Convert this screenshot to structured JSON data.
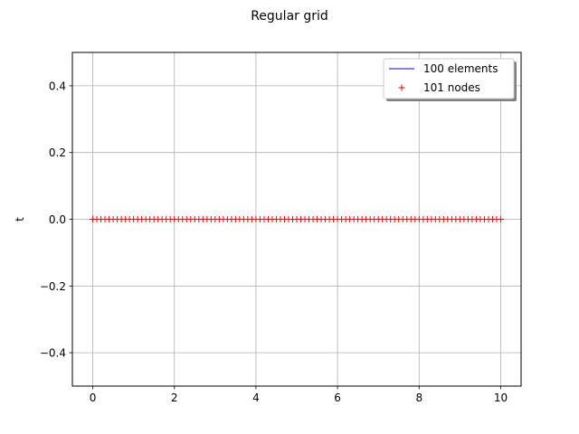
{
  "chart_data": {
    "type": "line",
    "title": "Regular grid",
    "xlabel": "",
    "ylabel": "t",
    "xlim": [
      -0.5,
      10.5
    ],
    "ylim": [
      -0.5,
      0.5
    ],
    "xticks": [
      0,
      2,
      4,
      6,
      8,
      10
    ],
    "yticks": [
      -0.4,
      -0.2,
      0.0,
      0.2,
      0.4
    ],
    "xtick_labels": [
      "0",
      "2",
      "4",
      "6",
      "8",
      "10"
    ],
    "ytick_labels": [
      "−0.4",
      "−0.2",
      "0.0",
      "0.2",
      "0.4"
    ],
    "grid": true,
    "legend_position": "top-right",
    "series": [
      {
        "name": "100 elements",
        "kind": "line",
        "color": "#0000ff",
        "x_start": 0,
        "x_end": 10,
        "y": 0
      },
      {
        "name": "101 nodes",
        "kind": "markers",
        "marker": "+",
        "color": "#ff0000",
        "x_start": 0,
        "x_end": 10,
        "count": 101,
        "y": 0
      }
    ]
  }
}
